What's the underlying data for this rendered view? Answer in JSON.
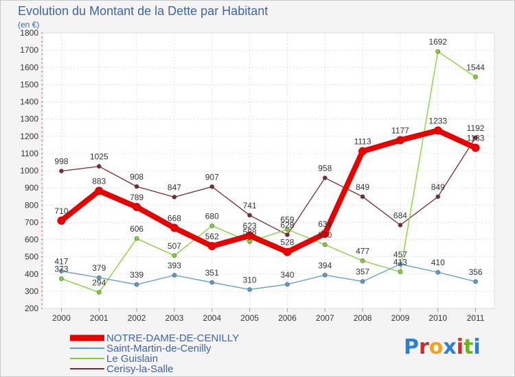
{
  "chart_data": {
    "type": "line",
    "title": "Evolution du Montant de la Dette par Habitant",
    "subtitle": "(en €)",
    "categories": [
      "2000",
      "2001",
      "2002",
      "2003",
      "2004",
      "2005",
      "2006",
      "2007",
      "2008",
      "2009",
      "2010",
      "2011"
    ],
    "ylim": [
      200,
      1800
    ],
    "yticks": [
      200,
      300,
      400,
      500,
      600,
      700,
      800,
      900,
      1000,
      1100,
      1200,
      1300,
      1400,
      1500,
      1600,
      1700,
      1800
    ],
    "grid": true,
    "legend_position": "bottom-left",
    "series": [
      {
        "name": "Cerisy-la-Salle",
        "color": "#7a2a2a",
        "values": [
          998,
          1025,
          908,
          847,
          907,
          741,
          628,
          958,
          849,
          684,
          849,
          1192
        ]
      },
      {
        "name": "Le Guislain",
        "color": "#7fd22e",
        "values": [
          373,
          294,
          606,
          507,
          680,
          588,
          659,
          570,
          477,
          413,
          1692,
          1544
        ]
      },
      {
        "name": "Saint-Martin-de-Cenilly",
        "color": "#5b9bd0",
        "values": [
          417,
          379,
          339,
          393,
          351,
          310,
          340,
          394,
          357,
          457,
          410,
          356
        ]
      },
      {
        "name": "NOTRE-DAME-DE-CENILLY",
        "color": "#e60000",
        "values": [
          710,
          883,
          789,
          668,
          562,
          623,
          528,
          634,
          1113,
          1177,
          1233,
          1133
        ]
      }
    ]
  },
  "brand": {
    "letters": [
      "P",
      "r",
      "o",
      "x",
      "i",
      "t",
      "i"
    ],
    "colors": [
      "#2d7fd6",
      "#d12a2a",
      "#f2a31b",
      "#2d7fd6",
      "#d12a2a",
      "#69b61e",
      "#2d7fd6"
    ]
  }
}
